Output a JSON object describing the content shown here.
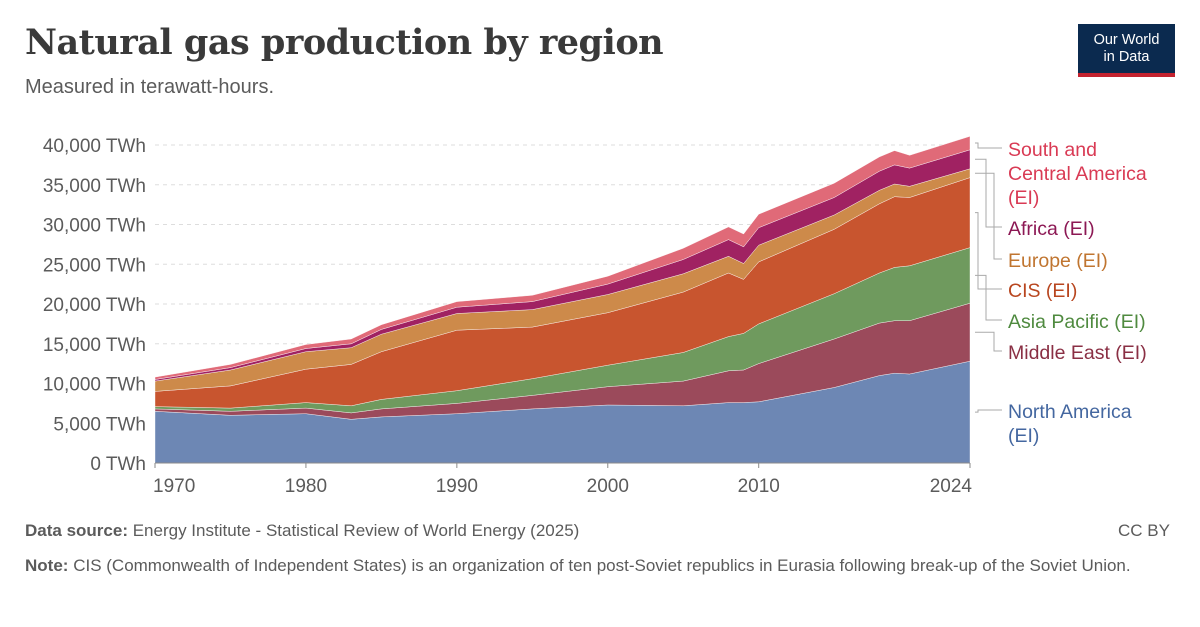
{
  "title": "Natural gas production by region",
  "subtitle": "Measured in terawatt-hours.",
  "logo": {
    "line1": "Our World",
    "line2": "in Data"
  },
  "footer": {
    "source_label": "Data source:",
    "source_text": "Energy Institute - Statistical Review of World Energy (2025)",
    "license": "CC BY",
    "note_label": "Note:",
    "note_text": "CIS (Commonwealth of Independent States) is an organization of ten post-Soviet republics in Eurasia following break-up of the Soviet Union."
  },
  "chart_data": {
    "type": "area",
    "stacked": true,
    "title": "Natural gas production by region",
    "subtitle": "Measured in terawatt-hours.",
    "ylim": [
      0,
      40000
    ],
    "y_ticks": [
      0,
      5000,
      10000,
      15000,
      20000,
      25000,
      30000,
      35000,
      40000
    ],
    "y_tick_labels": [
      "0 TWh",
      "5,000 TWh",
      "10,000 TWh",
      "15,000 TWh",
      "20,000 TWh",
      "25,000 TWh",
      "30,000 TWh",
      "35,000 TWh",
      "40,000 TWh"
    ],
    "x_ticks": [
      1970,
      1980,
      1990,
      2000,
      2010,
      2024
    ],
    "xlim": [
      1970,
      2024
    ],
    "grid": true,
    "x": [
      1970,
      1975,
      1980,
      1983,
      1985,
      1990,
      1995,
      2000,
      2005,
      2008,
      2009,
      2010,
      2015,
      2018,
      2019,
      2020,
      2024
    ],
    "series": [
      {
        "name": "North America (EI)",
        "color": "#6d87b4",
        "values": [
          6500,
          6000,
          6200,
          5500,
          5800,
          6200,
          6800,
          7300,
          7200,
          7600,
          7600,
          7700,
          9500,
          11000,
          11300,
          11200,
          12800
        ]
      },
      {
        "name": "Middle East (EI)",
        "color": "#9b4a5b",
        "values": [
          300,
          500,
          700,
          800,
          1000,
          1300,
          1700,
          2300,
          3100,
          4000,
          4100,
          4800,
          6100,
          6600,
          6600,
          6700,
          7300
        ]
      },
      {
        "name": "Asia Pacific (EI)",
        "color": "#6f9a5e",
        "values": [
          300,
          400,
          700,
          900,
          1200,
          1600,
          2100,
          2700,
          3600,
          4300,
          4600,
          5000,
          5700,
          6300,
          6700,
          6900,
          7000
        ]
      },
      {
        "name": "CIS (EI)",
        "color": "#c8552f",
        "values": [
          1900,
          2800,
          4200,
          5200,
          6000,
          7600,
          6500,
          6600,
          7600,
          8000,
          6800,
          7800,
          8100,
          8700,
          8900,
          8600,
          8800
        ]
      },
      {
        "name": "Europe (EI)",
        "color": "#cd8a4a",
        "values": [
          1300,
          2000,
          2200,
          2100,
          2200,
          2100,
          2200,
          2300,
          2300,
          2100,
          2000,
          2100,
          1800,
          1700,
          1600,
          1400,
          1100
        ]
      },
      {
        "name": "Africa (EI)",
        "color": "#a02262",
        "values": [
          200,
          300,
          400,
          500,
          600,
          800,
          1000,
          1300,
          1800,
          2100,
          2100,
          2200,
          2200,
          2400,
          2400,
          2300,
          2400
        ]
      },
      {
        "name": "South and Central America (EI)",
        "color": "#e06a78",
        "values": [
          300,
          400,
          500,
          600,
          600,
          700,
          800,
          1000,
          1400,
          1600,
          1600,
          1700,
          1800,
          1800,
          1800,
          1600,
          1700
        ]
      }
    ]
  },
  "legend": [
    {
      "lines": [
        "South and",
        "Central America",
        "(EI)"
      ],
      "color": "#d93a54"
    },
    {
      "lines": [
        "Africa (EI)"
      ],
      "color": "#8c1854"
    },
    {
      "lines": [
        "Europe (EI)"
      ],
      "color": "#c07530"
    },
    {
      "lines": [
        "CIS (EI)"
      ],
      "color": "#b8461f"
    },
    {
      "lines": [
        "Asia Pacific (EI)"
      ],
      "color": "#4f8a3f"
    },
    {
      "lines": [
        "Middle East (EI)"
      ],
      "color": "#8a2f44"
    },
    {
      "lines": [
        "North America",
        "(EI)"
      ],
      "color": "#4467a0"
    }
  ]
}
